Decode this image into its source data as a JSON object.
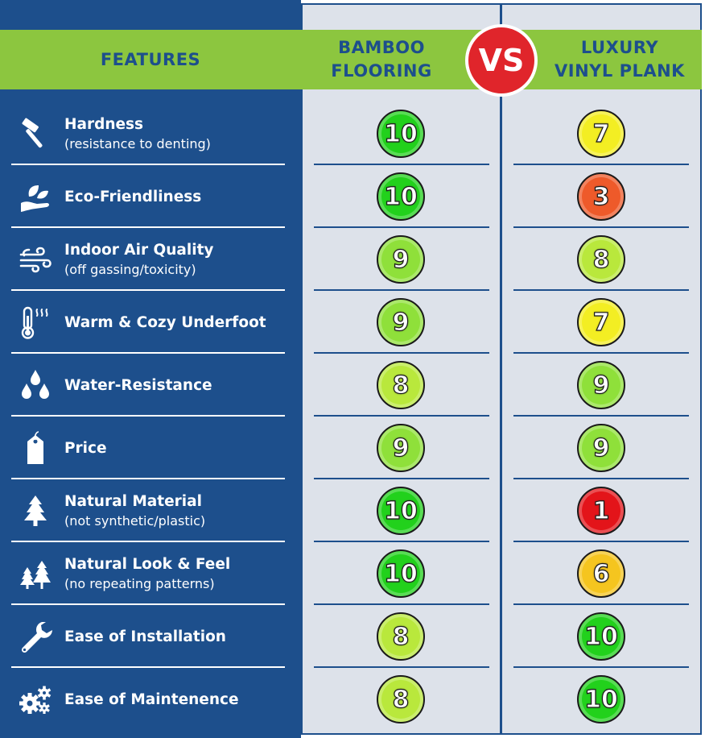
{
  "header": {
    "features": "FEATURES",
    "bamboo_line1": "BAMBOO",
    "bamboo_line2": "FLOORING",
    "vs": "VS",
    "lvp_line1": "LUXURY",
    "lvp_line2": "VINYL PLANK"
  },
  "colors": {
    "navy": "#1d4f8c",
    "green_band": "#8cc63f",
    "vs_red": "#e0252b",
    "score_10": "#22d11c",
    "score_9": "#8fe03a",
    "score_8": "#b9e83c",
    "score_7": "#f3ee23",
    "score_6": "#f5c51f",
    "score_3": "#ee5a2a",
    "score_1": "#e3141a"
  },
  "rows": [
    {
      "icon": "hammer-icon",
      "title": "Hardness",
      "sub": "(resistance to denting)",
      "bamboo": "10",
      "lvp": "7"
    },
    {
      "icon": "eco-hand-icon",
      "title": "Eco-Friendliness",
      "sub": "",
      "bamboo": "10",
      "lvp": "3"
    },
    {
      "icon": "air-icon",
      "title": "Indoor Air Quality",
      "sub": "(off gassing/toxicity)",
      "bamboo": "9",
      "lvp": "8"
    },
    {
      "icon": "thermometer-icon",
      "title": "Warm & Cozy Underfoot",
      "sub": "",
      "bamboo": "9",
      "lvp": "7"
    },
    {
      "icon": "water-drops-icon",
      "title": "Water-Resistance",
      "sub": "",
      "bamboo": "8",
      "lvp": "9"
    },
    {
      "icon": "price-tag-icon",
      "title": "Price",
      "sub": "",
      "bamboo": "9",
      "lvp": "9"
    },
    {
      "icon": "tree-icon",
      "title": "Natural Material",
      "sub": "(not synthetic/plastic)",
      "bamboo": "10",
      "lvp": "1"
    },
    {
      "icon": "trees-icon",
      "title": "Natural Look & Feel",
      "sub": "(no repeating patterns)",
      "bamboo": "10",
      "lvp": "6"
    },
    {
      "icon": "wrench-icon",
      "title": "Ease of Installation",
      "sub": "",
      "bamboo": "8",
      "lvp": "10"
    },
    {
      "icon": "gears-icon",
      "title": "Ease of Maintenence",
      "sub": "",
      "bamboo": "8",
      "lvp": "10"
    }
  ]
}
